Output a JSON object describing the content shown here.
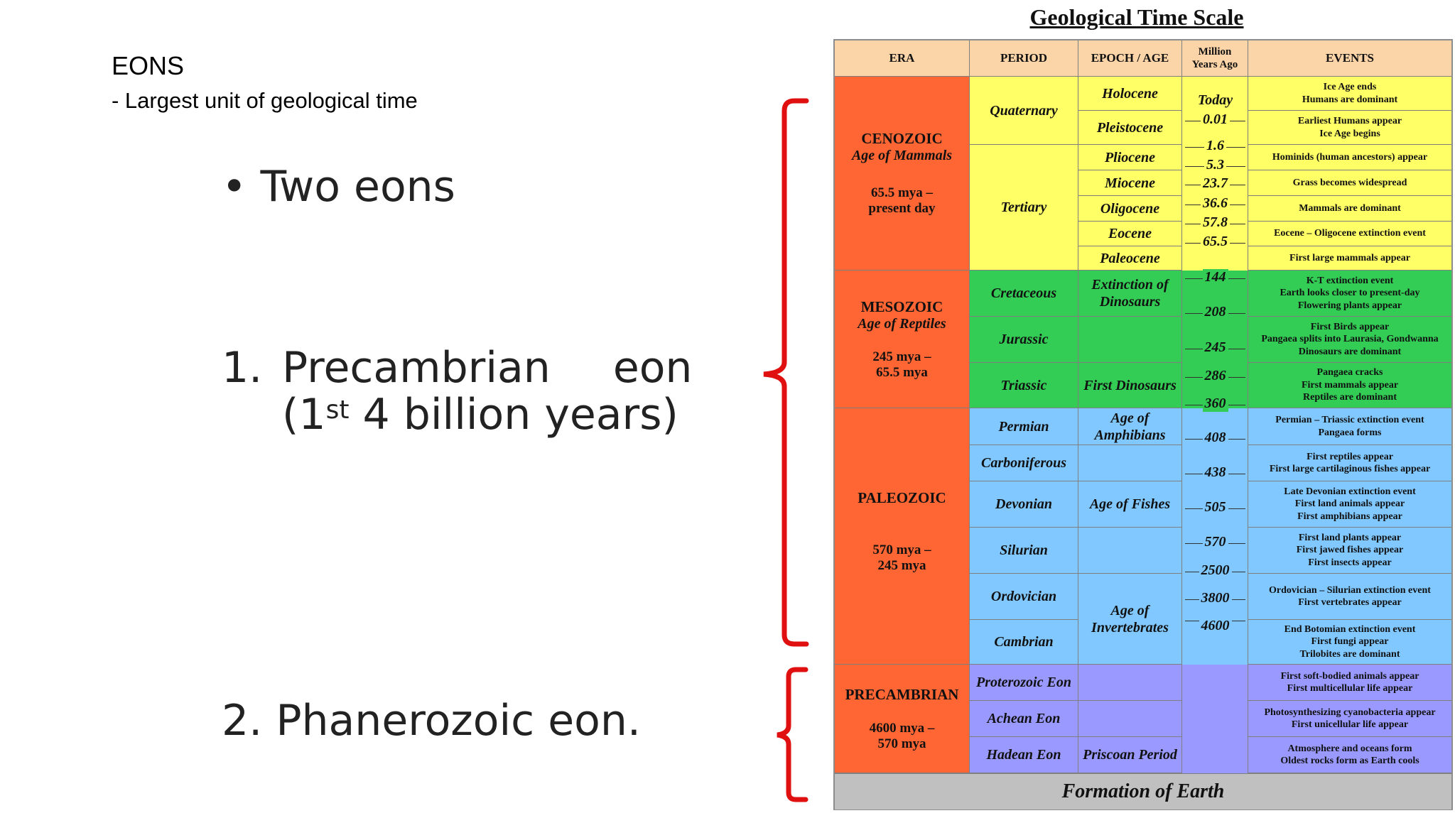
{
  "slide": {
    "heading": "EONS",
    "subheading": "- Largest unit of geological time",
    "bullet": "• Two eons",
    "item1_number": "1.",
    "item1_word": "Precambrian",
    "item1_word2": "eon",
    "item1_line2_open": "(1",
    "item1_sup": "st",
    "item1_line2_rest": " 4 billion years)",
    "item2": "2. Phanerozoic eon."
  },
  "colors": {
    "brace": "#e01010",
    "era_bg": "#ff6633",
    "cenozoic_bg": "#ffff66",
    "mesozoic_bg": "#33cc55",
    "paleozoic_bg": "#80c8ff",
    "precambrian_bg": "#9999ff",
    "header_bg": "#fbd4a8",
    "footer_bg": "#c0c0c0"
  },
  "timescale": {
    "title": "Geological Time Scale",
    "headers": {
      "era": "ERA",
      "period": "PERIOD",
      "epoch": "EPOCH / AGE",
      "mya1": "Million",
      "mya2": "Years Ago",
      "events": "EVENTS"
    },
    "eras": [
      {
        "name": "CENOZOIC",
        "sub": "Age of Mammals",
        "date1": "65.5 mya –",
        "date2": "present day"
      },
      {
        "name": "MESOZOIC",
        "sub": "Age of Reptiles",
        "date1": "245 mya –",
        "date2": "65.5 mya"
      },
      {
        "name": "PALEOZOIC",
        "sub": "",
        "date1": "570 mya –",
        "date2": "245 mya"
      },
      {
        "name": "PRECAMBRIAN",
        "sub": "",
        "date1": "4600 mya –",
        "date2": "570 mya"
      }
    ],
    "periods": [
      "Quaternary",
      "Tertiary",
      "Cretaceous",
      "Jurassic",
      "Triassic",
      "Permian",
      "Carboniferous",
      "Devonian",
      "Silurian",
      "Ordovician",
      "Cambrian",
      "Proterozoic Eon",
      "Achean Eon",
      "Hadean Eon"
    ],
    "epochs": [
      "Holocene",
      "Pleistocene",
      "Pliocene",
      "Miocene",
      "Oligocene",
      "Eocene",
      "Paleocene",
      "Extinction of Dinosaurs",
      "",
      "First Dinosaurs",
      "Age of Amphibians",
      "Age of Fishes",
      "",
      "Age of Invertebrates",
      "",
      "",
      "Priscoan Period"
    ],
    "mya_labels": [
      "Today",
      "0.01",
      "1.6",
      "5.3",
      "23.7",
      "36.6",
      "57.8",
      "65.5",
      "144",
      "208",
      "245",
      "286",
      "360",
      "408",
      "438",
      "505",
      "570",
      "2500",
      "3800",
      "4600"
    ],
    "events": [
      "Ice Age ends\nHumans are dominant",
      "Earliest Humans appear\nIce Age begins",
      "Hominids (human ancestors) appear",
      "Grass becomes widespread",
      "Mammals are dominant",
      "Eocene – Oligocene extinction event",
      "First large mammals appear",
      "K-T extinction event\nEarth looks closer to present-day\nFlowering plants appear",
      "First Birds appear\nPangaea splits into Laurasia, Gondwanna\nDinosaurs are dominant",
      "Pangaea cracks\nFirst mammals appear\nReptiles are dominant",
      "Permian – Triassic extinction event\nPangaea forms",
      "First reptiles appear\nFirst large cartilaginous fishes appear",
      "Late Devonian extinction event\nFirst land animals appear\nFirst amphibians appear",
      "First land plants appear\nFirst jawed fishes appear\nFirst insects appear",
      "Ordovician – Silurian extinction event\nFirst vertebrates appear",
      "End Botomian extinction event\nFirst fungi appear\nTrilobites are dominant",
      "First soft-bodied animals appear\nFirst multicellular life appear",
      "Photosynthesizing cyanobacteria appear\nFirst unicellular life appear",
      "Atmosphere and oceans form\nOldest rocks form as Earth cools"
    ],
    "footer": "Formation of Earth"
  }
}
